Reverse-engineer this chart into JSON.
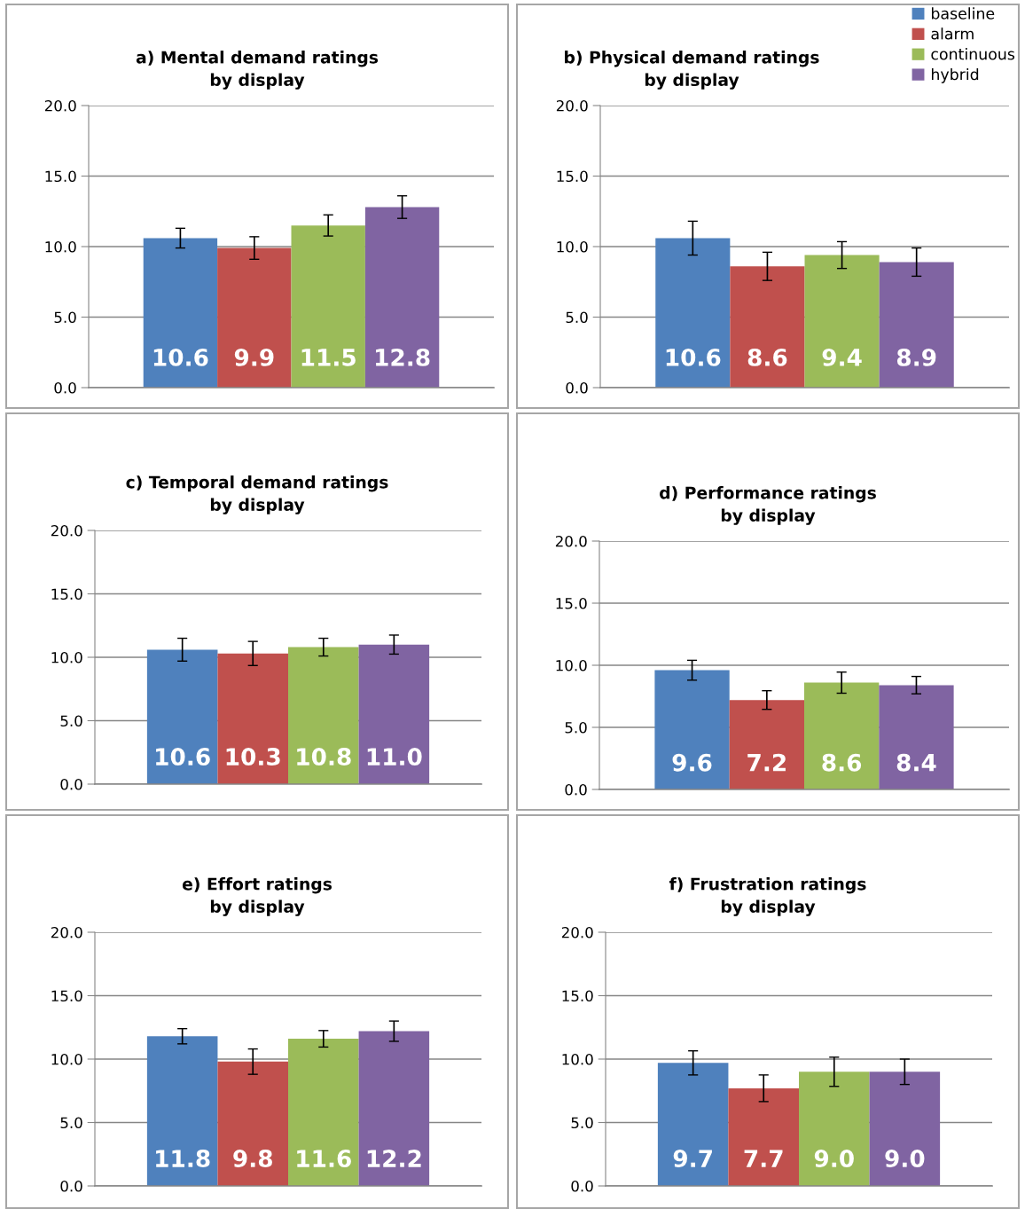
{
  "chart_data": [
    {
      "type": "bar",
      "title": "a) Mental demand ratings\nby display",
      "categories": [
        null,
        null,
        null,
        null
      ],
      "values": [
        10.6,
        9.9,
        11.5,
        12.8
      ],
      "errors": [
        0.7,
        0.8,
        0.75,
        0.8
      ],
      "colors": [
        "#4f81bd",
        "#c0504d",
        "#9bbb59",
        "#8064a2"
      ],
      "ylim": [
        0,
        20
      ],
      "yticks": [
        {
          "value": 0,
          "label": "0.0"
        },
        {
          "value": 5,
          "label": "5.0"
        },
        {
          "value": 10,
          "label": "10.0"
        },
        {
          "value": 15,
          "label": "15.0"
        },
        {
          "value": 20,
          "label": "20.0"
        }
      ],
      "grid": "y",
      "data_labels": true
    },
    {
      "type": "bar",
      "title": "b) Physical demand ratings\nby display",
      "categories": [
        null
      ],
      "series": [
        {
          "name": "baseline",
          "color": "#4f81bd",
          "values": [
            10.6
          ],
          "errors": [
            1.2
          ]
        },
        {
          "name": "alarm",
          "color": "#c0504d",
          "values": [
            8.6
          ],
          "errors": [
            1.0
          ]
        },
        {
          "name": "continuous",
          "color": "#9bbb59",
          "values": [
            9.4
          ],
          "errors": [
            0.95
          ]
        },
        {
          "name": "hybrid",
          "color": "#8064a2",
          "values": [
            8.9
          ],
          "errors": [
            1.0
          ]
        }
      ],
      "ylim": [
        0,
        20
      ],
      "yticks": [
        {
          "value": 0,
          "label": "0.0"
        },
        {
          "value": 5,
          "label": "5.0"
        },
        {
          "value": 10,
          "label": "10.0"
        },
        {
          "value": 15,
          "label": "15.0"
        },
        {
          "value": 20,
          "label": "20.0"
        }
      ],
      "grid": "y",
      "data_labels": true,
      "legend": "top right"
    },
    {
      "type": "bar",
      "title": "c) Temporal demand ratings\nby display",
      "categories": [
        null,
        null,
        null,
        null
      ],
      "values": [
        10.6,
        10.3,
        10.8,
        11.0
      ],
      "value_labels": [
        "10.6",
        "10.3",
        "10.8",
        "11.0"
      ],
      "errors": [
        0.9,
        0.95,
        0.7,
        0.75
      ],
      "colors": [
        "#4f81bd",
        "#c0504d",
        "#9bbb59",
        "#8064a2"
      ],
      "ylim": [
        0,
        20
      ],
      "yticks": [
        {
          "value": 0,
          "label": "0.0"
        },
        {
          "value": 5,
          "label": "5.0"
        },
        {
          "value": 10,
          "label": "10.0"
        },
        {
          "value": 15,
          "label": "15.0"
        },
        {
          "value": 20,
          "label": "20.0"
        }
      ],
      "grid": "y"
    },
    {
      "type": "bar",
      "title": "d) Performance ratings\nby display",
      "categories": [
        null,
        null,
        null,
        null
      ],
      "values": [
        9.6,
        7.2,
        8.6,
        8.4
      ],
      "errors": [
        0.8,
        0.75,
        0.85,
        0.7
      ],
      "colors": [
        "#4f81bd",
        "#c0504d",
        "#9bbb59",
        "#8064a2"
      ],
      "ylim": [
        0,
        20
      ],
      "yticks": [
        {
          "value": 0,
          "label": "0.0"
        },
        {
          "value": 5,
          "label": "5.0"
        },
        {
          "value": 10,
          "label": "10.0"
        },
        {
          "value": 15,
          "label": "15.0"
        },
        {
          "value": 20,
          "label": "20.0"
        }
      ],
      "grid": "y",
      "data_labels": true
    },
    {
      "type": "bar",
      "title": "e) Effort ratings\nby display",
      "categories": [
        null,
        null,
        null,
        null
      ],
      "values": [
        11.8,
        9.8,
        11.6,
        12.2
      ],
      "errors": [
        0.6,
        1.0,
        0.65,
        0.8
      ],
      "colors": [
        "#4f81bd",
        "#c0504d",
        "#9bbb59",
        "#8064a2"
      ],
      "ylim": [
        0,
        20
      ],
      "yticks": [
        {
          "value": 0,
          "label": "0.0"
        },
        {
          "value": 5,
          "label": "5.0"
        },
        {
          "value": 10,
          "label": "10.0"
        },
        {
          "value": 15,
          "label": "15.0"
        },
        {
          "value": 20,
          "label": "20.0"
        }
      ],
      "grid": "y",
      "data_labels": true
    },
    {
      "type": "bar",
      "title": "f) Frustration ratings\nby display",
      "categories": [
        null,
        null,
        null,
        null
      ],
      "values": [
        9.7,
        7.7,
        9.0,
        9.0
      ],
      "value_labels": [
        "9.7",
        "7.7",
        "9.0",
        "9.0"
      ],
      "errors": [
        0.95,
        1.05,
        1.15,
        1.0
      ],
      "colors": [
        "#4f81bd",
        "#c0504d",
        "#9bbb59",
        "#8064a2"
      ],
      "ylim": [
        0,
        20
      ],
      "yticks": [
        {
          "value": 0,
          "label": "0.0"
        },
        {
          "value": 5,
          "label": "5.0"
        },
        {
          "value": 10,
          "label": "10.0"
        },
        {
          "value": 15,
          "label": "15.0"
        },
        {
          "value": 20,
          "label": "20.0"
        }
      ],
      "grid": "y"
    }
  ]
}
